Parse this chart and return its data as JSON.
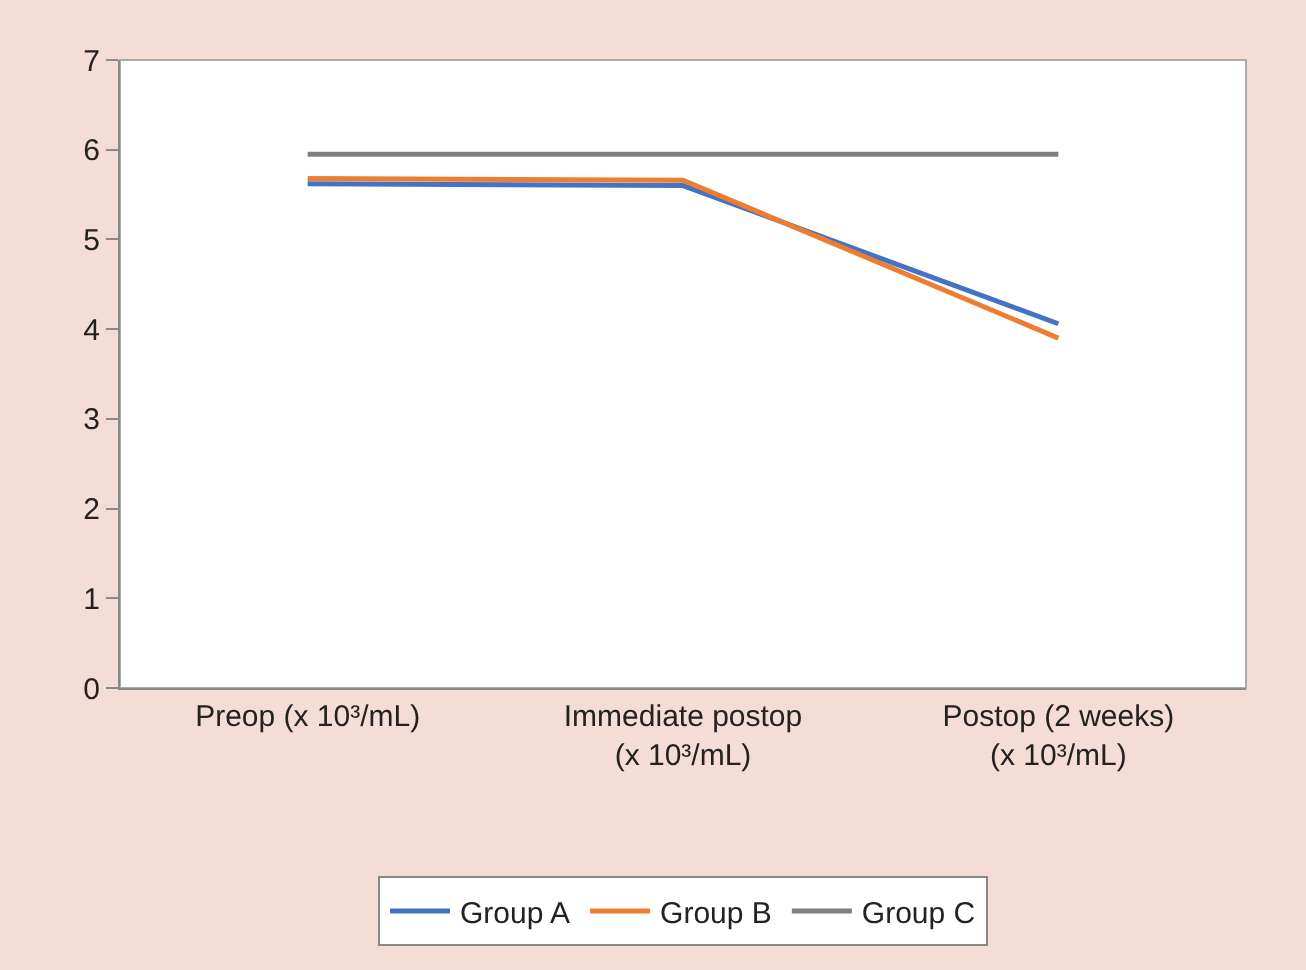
{
  "chart_data": {
    "type": "line",
    "categories": [
      "Preop (x 10³/mL)",
      "Immediate postop\n(x 10³/mL)",
      "Postop (2 weeks)\n(x 10³/mL)"
    ],
    "series": [
      {
        "name": "Group A",
        "color": "#4472c4",
        "values": [
          5.62,
          5.6,
          4.06
        ]
      },
      {
        "name": "Group B",
        "color": "#ed7d31",
        "values": [
          5.68,
          5.66,
          3.9
        ]
      },
      {
        "name": "Group C",
        "color": "#7f7f7f",
        "values": [
          5.95,
          5.95,
          5.95
        ]
      }
    ],
    "ylim": [
      0,
      7
    ],
    "yticks": [
      0,
      1,
      2,
      3,
      4,
      5,
      6,
      7
    ],
    "grid": false,
    "legend": "bottom",
    "marker": "none",
    "line_style": "solid"
  }
}
